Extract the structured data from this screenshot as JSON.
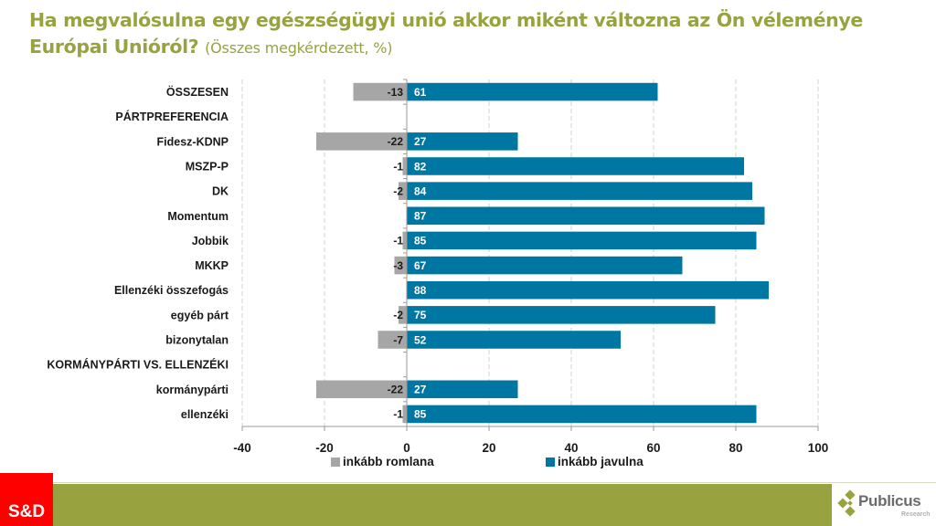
{
  "header": {
    "title_main": "Ha megvalósulna egy egészségügyi unió akkor miként változna az Ön véleménye Európai Unióról?",
    "title_sub": "(Összes megkérdezett, %)"
  },
  "colors": {
    "title": "#98a33f",
    "negative_bar": "#a6a6a6",
    "positive_bar": "#0077a3",
    "footer_bar": "#98a33f",
    "sd_logo": "#ff0000"
  },
  "chart_data": {
    "type": "bar",
    "orientation": "horizontal",
    "stacked": "diverging",
    "title": "Ha megvalósulna egy egészségügyi unió akkor miként változna az Ön véleménye Európai Unióról? (Összes megkérdezett, %)",
    "xlabel": "",
    "ylabel": "",
    "xlim": [
      -40,
      100
    ],
    "xticks": [
      -40,
      -20,
      0,
      20,
      40,
      60,
      80,
      100
    ],
    "xtick_labels": [
      "-40",
      "-20",
      "0",
      "20",
      "40",
      "60",
      "80",
      "100"
    ],
    "grid": "vertical dashed",
    "legend_position": "bottom",
    "categories": [
      "ÖSSZESEN",
      "PÁRTPREFERENCIA",
      "Fidesz-KDNP",
      "MSZP-P",
      "DK",
      "Momentum",
      "Jobbik",
      "MKKP",
      "Ellenzéki összefogás",
      "egyéb párt",
      "bizonytalan",
      "KORMÁNYPÁRTI VS. ELLENZÉKI",
      "kormánypárti",
      "ellenzéki"
    ],
    "series": [
      {
        "name": "inkább romlana",
        "color": "#a6a6a6",
        "values": [
          -13,
          null,
          -22,
          -1,
          -2,
          null,
          -1,
          -3,
          null,
          -2,
          -7,
          null,
          -22,
          -1
        ]
      },
      {
        "name": "inkább javulna",
        "color": "#0077a3",
        "values": [
          61,
          null,
          27,
          82,
          84,
          87,
          85,
          67,
          88,
          75,
          52,
          null,
          27,
          85
        ]
      }
    ]
  },
  "footer": {
    "sd_logo_text": "S&D",
    "publicus_name": "Publicus",
    "publicus_sub": "Research"
  }
}
